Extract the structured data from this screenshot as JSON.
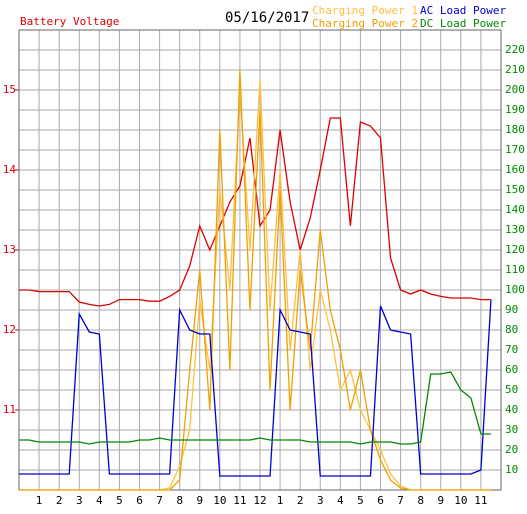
{
  "chart_data": {
    "type": "line",
    "title": "05/16/2017",
    "x": [
      0,
      0.5,
      1,
      1.5,
      2,
      2.5,
      3,
      3.5,
      4,
      4.5,
      5,
      5.5,
      6,
      6.5,
      7,
      7.5,
      8,
      8.5,
      9,
      9.5,
      10,
      10.5,
      11,
      11.5,
      12,
      12.5,
      13,
      13.5,
      14,
      14.5,
      15,
      15.5,
      16,
      16.5,
      17,
      17.5,
      18,
      18.5,
      19,
      19.5,
      20,
      20.5,
      21,
      21.5,
      22,
      22.5,
      23,
      23.5
    ],
    "xlim": [
      0,
      24
    ],
    "xticks": [
      1,
      2,
      3,
      4,
      5,
      6,
      7,
      8,
      9,
      10,
      11,
      12,
      {
        "value": 13,
        "label": "1"
      },
      {
        "value": 14,
        "label": "2"
      },
      {
        "value": 15,
        "label": "3"
      },
      {
        "value": 16,
        "label": "4"
      },
      {
        "value": 17,
        "label": "5"
      },
      {
        "value": 18,
        "label": "6"
      },
      {
        "value": 19,
        "label": "7"
      },
      {
        "value": 20,
        "label": "8"
      },
      {
        "value": 21,
        "label": "9"
      },
      {
        "value": 22,
        "label": "10"
      },
      {
        "value": 23,
        "label": "11"
      }
    ],
    "ylim": [
      10,
      15.75
    ],
    "yticks": [
      11,
      12,
      13,
      14,
      15
    ],
    "y2lim": [
      0,
      230
    ],
    "y2ticks": [
      10,
      20,
      30,
      40,
      50,
      60,
      70,
      80,
      90,
      100,
      110,
      120,
      130,
      140,
      150,
      160,
      170,
      180,
      190,
      200,
      210,
      220
    ],
    "grid": true,
    "series": [
      {
        "name": "Battery Voltage",
        "color": "#dd0000",
        "values": [
          12.5,
          12.5,
          12.48,
          12.48,
          12.48,
          12.48,
          12.35,
          12.32,
          12.3,
          12.32,
          12.38,
          12.38,
          12.38,
          12.36,
          12.36,
          12.42,
          12.5,
          12.8,
          13.3,
          13.0,
          13.3,
          13.6,
          13.8,
          14.4,
          13.3,
          13.5,
          14.5,
          13.6,
          13.0,
          13.4,
          14.0,
          14.65,
          14.65,
          13.3,
          14.6,
          14.55,
          14.4,
          12.9,
          12.5,
          12.45,
          12.5,
          12.45,
          12.42,
          12.4,
          12.4,
          12.4,
          12.38,
          12.38
        ]
      },
      {
        "name": "Charging Power 1",
        "color": "#ffc040",
        "axis": "y2",
        "values": [
          0,
          0,
          0,
          0,
          0,
          0,
          0,
          0,
          0,
          0,
          0,
          0,
          0,
          0,
          0,
          1,
          12,
          30,
          95,
          60,
          150,
          100,
          200,
          120,
          205,
          90,
          160,
          70,
          120,
          60,
          100,
          80,
          50,
          60,
          40,
          30,
          20,
          8,
          2,
          0,
          0,
          0,
          0,
          0,
          0,
          0,
          0,
          0
        ]
      },
      {
        "name": "Charging Power 2",
        "color": "#f0a000",
        "axis": "y2",
        "values": [
          0,
          0,
          0,
          0,
          0,
          0,
          0,
          0,
          0,
          0,
          0,
          0,
          0,
          0,
          0,
          0,
          5,
          60,
          110,
          40,
          180,
          60,
          210,
          90,
          190,
          50,
          150,
          40,
          110,
          70,
          130,
          90,
          70,
          40,
          60,
          30,
          15,
          5,
          1,
          0,
          0,
          0,
          0,
          0,
          0,
          0,
          0,
          0
        ]
      },
      {
        "name": "AC Load Power",
        "color": "#0000cc",
        "axis": "y2",
        "values": [
          8,
          8,
          8,
          8,
          8,
          8,
          88,
          79,
          78,
          8,
          8,
          8,
          8,
          8,
          8,
          8,
          90,
          80,
          78,
          78,
          7,
          7,
          7,
          7,
          7,
          7,
          90,
          80,
          79,
          78,
          7,
          7,
          7,
          7,
          7,
          7,
          92,
          80,
          79,
          78,
          8,
          8,
          8,
          8,
          8,
          8,
          10,
          95
        ]
      },
      {
        "name": "DC Load Power",
        "color": "#008800",
        "axis": "y2",
        "values": [
          25,
          25,
          24,
          24,
          24,
          24,
          24,
          23,
          24,
          24,
          24,
          24,
          25,
          25,
          26,
          25,
          25,
          25,
          25,
          25,
          25,
          25,
          25,
          25,
          26,
          25,
          25,
          25,
          25,
          24,
          24,
          24,
          24,
          24,
          23,
          24,
          24,
          24,
          23,
          23,
          24,
          58,
          58,
          59,
          50,
          46,
          28,
          28
        ]
      }
    ]
  }
}
